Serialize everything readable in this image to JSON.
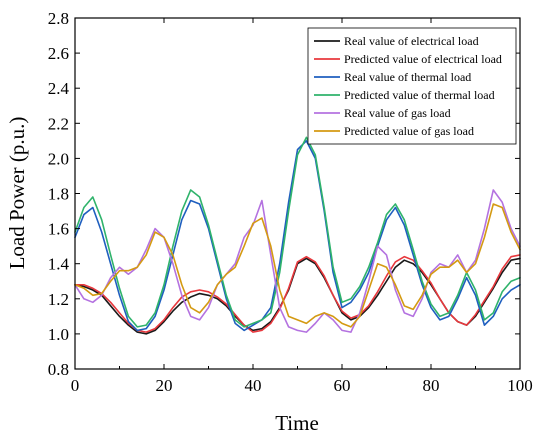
{
  "chart_data": {
    "type": "line",
    "title": "",
    "xlabel": "Time",
    "ylabel": "Load Power (p.u.)",
    "xlim": [
      0,
      100
    ],
    "ylim": [
      0.8,
      2.8
    ],
    "x_ticks": [
      0,
      20,
      40,
      60,
      80,
      100
    ],
    "y_ticks": [
      0.8,
      1.0,
      1.2,
      1.4,
      1.6,
      1.8,
      2.0,
      2.2,
      2.4,
      2.6,
      2.8
    ],
    "x_tick_labels": [
      "0",
      "20",
      "40",
      "60",
      "80",
      "100"
    ],
    "y_tick_labels": [
      "0.8",
      "1.0",
      "1.2",
      "1.4",
      "1.6",
      "1.8",
      "2.0",
      "2.2",
      "2.4",
      "2.6",
      "2.8"
    ],
    "grid": false,
    "legend_position": "top-right",
    "series": [
      {
        "name": "Real value of electrical load",
        "color": "#1a1a1a",
        "x": [
          0,
          2,
          4,
          6,
          8,
          10,
          12,
          14,
          16,
          18,
          20,
          22,
          24,
          26,
          28,
          30,
          32,
          34,
          36,
          38,
          40,
          42,
          44,
          46,
          48,
          50,
          52,
          54,
          56,
          58,
          60,
          62,
          64,
          66,
          68,
          70,
          72,
          74,
          76,
          78,
          80,
          82,
          84,
          86,
          88,
          90,
          92,
          94,
          96,
          98,
          100
        ],
        "values": [
          1.28,
          1.27,
          1.25,
          1.22,
          1.16,
          1.1,
          1.05,
          1.01,
          1.0,
          1.02,
          1.07,
          1.13,
          1.18,
          1.21,
          1.23,
          1.22,
          1.2,
          1.16,
          1.1,
          1.05,
          1.02,
          1.03,
          1.07,
          1.15,
          1.25,
          1.4,
          1.43,
          1.4,
          1.32,
          1.22,
          1.12,
          1.08,
          1.1,
          1.15,
          1.22,
          1.3,
          1.38,
          1.42,
          1.4,
          1.35,
          1.28,
          1.2,
          1.12,
          1.07,
          1.05,
          1.1,
          1.18,
          1.26,
          1.35,
          1.42,
          1.43
        ]
      },
      {
        "name": "Predicted value of electrical load",
        "color": "#e8383d",
        "x": [
          0,
          2,
          4,
          6,
          8,
          10,
          12,
          14,
          16,
          18,
          20,
          22,
          24,
          26,
          28,
          30,
          32,
          34,
          36,
          38,
          40,
          42,
          44,
          46,
          48,
          50,
          52,
          54,
          56,
          58,
          60,
          62,
          64,
          66,
          68,
          70,
          72,
          74,
          76,
          78,
          80,
          82,
          84,
          86,
          88,
          90,
          92,
          94,
          96,
          98,
          100
        ],
        "values": [
          1.28,
          1.28,
          1.26,
          1.23,
          1.18,
          1.12,
          1.06,
          1.02,
          1.01,
          1.03,
          1.08,
          1.15,
          1.21,
          1.24,
          1.25,
          1.24,
          1.21,
          1.17,
          1.11,
          1.05,
          1.01,
          1.02,
          1.06,
          1.14,
          1.26,
          1.41,
          1.44,
          1.41,
          1.33,
          1.22,
          1.13,
          1.09,
          1.11,
          1.16,
          1.24,
          1.33,
          1.41,
          1.44,
          1.42,
          1.36,
          1.29,
          1.2,
          1.12,
          1.07,
          1.05,
          1.11,
          1.19,
          1.27,
          1.37,
          1.44,
          1.45
        ]
      },
      {
        "name": "Real value of thermal load",
        "color": "#1f5fbf",
        "x": [
          0,
          2,
          4,
          6,
          8,
          10,
          12,
          14,
          16,
          18,
          20,
          22,
          24,
          26,
          28,
          30,
          32,
          34,
          36,
          38,
          40,
          42,
          44,
          46,
          48,
          50,
          52,
          54,
          56,
          58,
          60,
          62,
          64,
          66,
          68,
          70,
          72,
          74,
          76,
          78,
          80,
          82,
          84,
          86,
          88,
          90,
          92,
          94,
          96,
          98,
          100
        ],
        "values": [
          1.55,
          1.68,
          1.72,
          1.58,
          1.4,
          1.22,
          1.07,
          1.02,
          1.03,
          1.1,
          1.25,
          1.45,
          1.65,
          1.76,
          1.74,
          1.6,
          1.4,
          1.2,
          1.06,
          1.02,
          1.05,
          1.08,
          1.15,
          1.4,
          1.75,
          2.05,
          2.1,
          2.0,
          1.7,
          1.35,
          1.15,
          1.18,
          1.25,
          1.35,
          1.5,
          1.65,
          1.72,
          1.62,
          1.45,
          1.28,
          1.15,
          1.08,
          1.1,
          1.2,
          1.32,
          1.22,
          1.05,
          1.1,
          1.2,
          1.25,
          1.28
        ]
      },
      {
        "name": "Predicted value of thermal load",
        "color": "#2fb36b",
        "x": [
          0,
          2,
          4,
          6,
          8,
          10,
          12,
          14,
          16,
          18,
          20,
          22,
          24,
          26,
          28,
          30,
          32,
          34,
          36,
          38,
          40,
          42,
          44,
          46,
          48,
          50,
          52,
          54,
          56,
          58,
          60,
          62,
          64,
          66,
          68,
          70,
          72,
          74,
          76,
          78,
          80,
          82,
          84,
          86,
          88,
          90,
          92,
          94,
          96,
          98,
          100
        ],
        "values": [
          1.58,
          1.72,
          1.78,
          1.65,
          1.45,
          1.26,
          1.1,
          1.04,
          1.05,
          1.12,
          1.28,
          1.5,
          1.7,
          1.82,
          1.78,
          1.62,
          1.42,
          1.22,
          1.08,
          1.04,
          1.06,
          1.08,
          1.12,
          1.35,
          1.7,
          2.02,
          2.12,
          2.02,
          1.72,
          1.38,
          1.18,
          1.2,
          1.27,
          1.38,
          1.52,
          1.68,
          1.74,
          1.65,
          1.48,
          1.3,
          1.17,
          1.1,
          1.12,
          1.22,
          1.35,
          1.25,
          1.08,
          1.12,
          1.24,
          1.3,
          1.32
        ]
      },
      {
        "name": "Real value of gas load",
        "color": "#b472e0",
        "x": [
          0,
          2,
          4,
          6,
          8,
          10,
          12,
          14,
          16,
          18,
          20,
          22,
          24,
          26,
          28,
          30,
          32,
          34,
          36,
          38,
          40,
          42,
          44,
          46,
          48,
          50,
          52,
          54,
          56,
          58,
          60,
          62,
          64,
          66,
          68,
          70,
          72,
          74,
          76,
          78,
          80,
          82,
          84,
          86,
          88,
          90,
          92,
          94,
          96,
          98,
          100
        ],
        "values": [
          1.28,
          1.2,
          1.18,
          1.22,
          1.32,
          1.38,
          1.34,
          1.38,
          1.48,
          1.6,
          1.55,
          1.4,
          1.22,
          1.1,
          1.08,
          1.15,
          1.28,
          1.34,
          1.4,
          1.55,
          1.62,
          1.76,
          1.45,
          1.15,
          1.04,
          1.02,
          1.01,
          1.06,
          1.12,
          1.08,
          1.02,
          1.01,
          1.12,
          1.3,
          1.5,
          1.45,
          1.25,
          1.12,
          1.1,
          1.2,
          1.35,
          1.4,
          1.38,
          1.45,
          1.35,
          1.42,
          1.6,
          1.82,
          1.75,
          1.6,
          1.5
        ]
      },
      {
        "name": "Predicted value of gas load",
        "color": "#d49a12",
        "x": [
          0,
          2,
          4,
          6,
          8,
          10,
          12,
          14,
          16,
          18,
          20,
          22,
          24,
          26,
          28,
          30,
          32,
          34,
          36,
          38,
          40,
          42,
          44,
          46,
          48,
          50,
          52,
          54,
          56,
          58,
          60,
          62,
          64,
          66,
          68,
          70,
          72,
          74,
          76,
          78,
          80,
          82,
          84,
          86,
          88,
          90,
          92,
          94,
          96,
          98,
          100
        ],
        "values": [
          1.28,
          1.26,
          1.22,
          1.23,
          1.3,
          1.36,
          1.36,
          1.38,
          1.45,
          1.58,
          1.55,
          1.45,
          1.28,
          1.15,
          1.12,
          1.18,
          1.28,
          1.34,
          1.38,
          1.5,
          1.63,
          1.66,
          1.5,
          1.25,
          1.1,
          1.08,
          1.06,
          1.1,
          1.12,
          1.1,
          1.06,
          1.04,
          1.1,
          1.25,
          1.4,
          1.38,
          1.28,
          1.16,
          1.14,
          1.22,
          1.34,
          1.38,
          1.38,
          1.42,
          1.35,
          1.4,
          1.55,
          1.74,
          1.72,
          1.58,
          1.48
        ]
      }
    ]
  }
}
